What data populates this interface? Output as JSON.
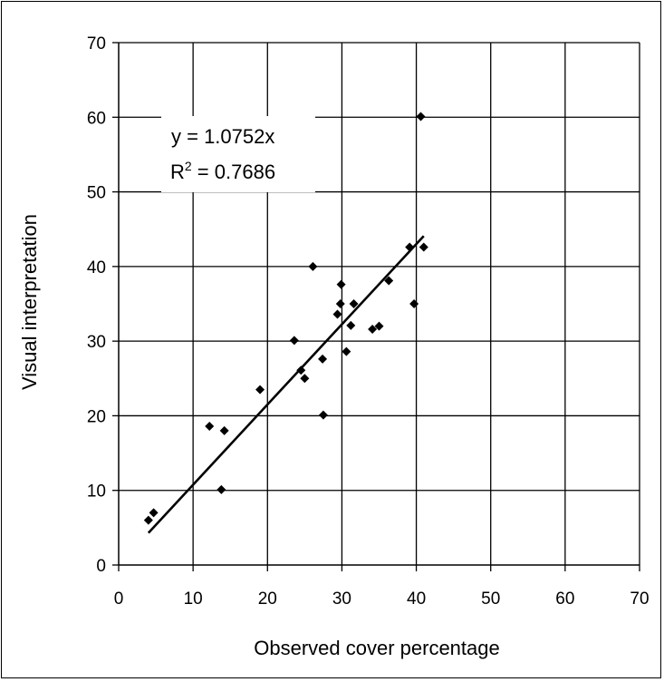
{
  "chart_data": {
    "type": "scatter",
    "title": "",
    "xlabel": "Observed cover percentage",
    "ylabel": "Visual interpretation",
    "xlim": [
      0,
      70
    ],
    "ylim": [
      0,
      70
    ],
    "x_ticks": [
      "0",
      "10",
      "20",
      "30",
      "40",
      "50",
      "60",
      "70"
    ],
    "y_ticks": [
      "0",
      "10",
      "20",
      "30",
      "40",
      "50",
      "60",
      "70"
    ],
    "grid": true,
    "legend": "none",
    "marker_color": "#000000",
    "line_color": "#000000",
    "series": [
      {
        "points": [
          {
            "x": 4.0,
            "y": 6.0
          },
          {
            "x": 4.7,
            "y": 7.0
          },
          {
            "x": 12.2,
            "y": 18.6
          },
          {
            "x": 13.8,
            "y": 10.1
          },
          {
            "x": 14.2,
            "y": 18.0
          },
          {
            "x": 19.0,
            "y": 23.5
          },
          {
            "x": 23.6,
            "y": 30.1
          },
          {
            "x": 24.5,
            "y": 26.1
          },
          {
            "x": 25.0,
            "y": 25.0
          },
          {
            "x": 26.1,
            "y": 40.0
          },
          {
            "x": 27.4,
            "y": 27.6
          },
          {
            "x": 27.5,
            "y": 20.1
          },
          {
            "x": 29.4,
            "y": 33.6
          },
          {
            "x": 29.8,
            "y": 35.0
          },
          {
            "x": 29.9,
            "y": 37.6
          },
          {
            "x": 30.6,
            "y": 28.6
          },
          {
            "x": 31.2,
            "y": 32.1
          },
          {
            "x": 31.6,
            "y": 35.0
          },
          {
            "x": 34.1,
            "y": 31.6
          },
          {
            "x": 35.0,
            "y": 32.0
          },
          {
            "x": 36.3,
            "y": 38.1
          },
          {
            "x": 39.1,
            "y": 42.6
          },
          {
            "x": 39.7,
            "y": 35.0
          },
          {
            "x": 40.6,
            "y": 60.1
          },
          {
            "x": 41.0,
            "y": 42.6
          }
        ]
      }
    ],
    "trendline": {
      "type": "linear",
      "slope": 1.0752,
      "intercept": 0,
      "x_range": [
        4.0,
        41.0
      ]
    },
    "annotations": [
      {
        "text": "y = 1.0752x"
      },
      {
        "text": "R",
        "superscript": "2",
        "rest": " = 0.7686"
      }
    ]
  }
}
